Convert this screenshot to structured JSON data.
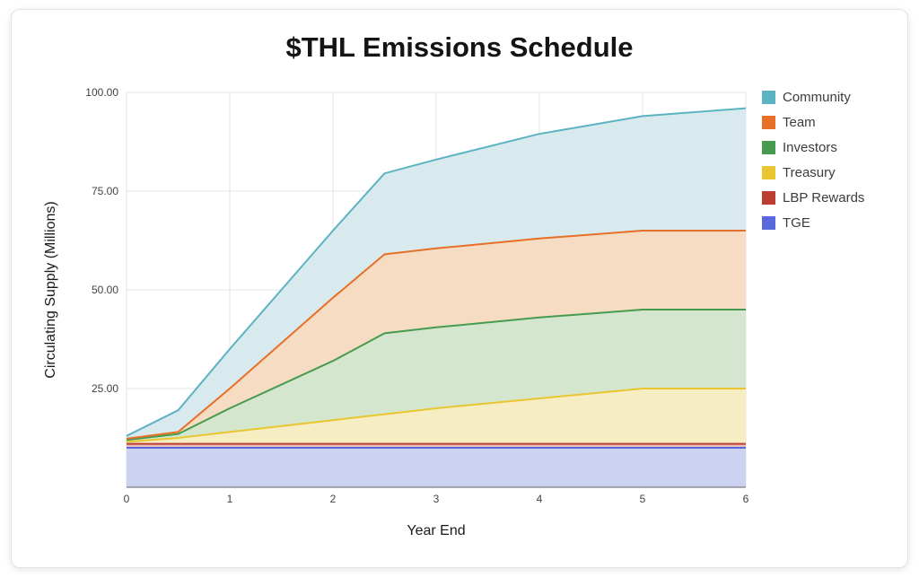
{
  "page": {
    "background": "#ffffff"
  },
  "chart_data": {
    "type": "area",
    "stacked": true,
    "title": "$THL Emissions Schedule",
    "xlabel": "Year End",
    "ylabel": "Circulating Supply (Millions)",
    "x": [
      0,
      0.5,
      1,
      2,
      2.5,
      3,
      4,
      5,
      6
    ],
    "xlim": [
      0,
      6
    ],
    "ylim": [
      0,
      100
    ],
    "xticks": {
      "values": [
        0,
        1,
        2,
        3,
        4,
        5,
        6
      ],
      "labels": [
        "0",
        "1",
        "2",
        "3",
        "4",
        "5",
        "6"
      ]
    },
    "yticks": {
      "values": [
        25,
        50,
        75,
        100
      ],
      "labels": [
        "25.00",
        "50.00",
        "75.00",
        "100.00"
      ]
    },
    "grid": true,
    "grid_color": "#e3e3e3",
    "axis_color": "#616161",
    "legend_position": "right",
    "series": [
      {
        "name": "Community",
        "color": "#5cb3c2",
        "fill": "#d8eaee",
        "values": [
          0.7,
          5.5,
          10,
          17,
          20.5,
          22.5,
          26.5,
          29,
          31
        ]
      },
      {
        "name": "Team",
        "color": "#e76f27",
        "fill": "#f7dcc4",
        "values": [
          0.3,
          0.5,
          5,
          16,
          20,
          20,
          20,
          20,
          20
        ]
      },
      {
        "name": "Investors",
        "color": "#469b4f",
        "fill": "#d4e7ce",
        "values": [
          0.5,
          1,
          6,
          15,
          20.5,
          20.5,
          20.5,
          20,
          20
        ]
      },
      {
        "name": "Treasury",
        "color": "#e9c62f",
        "fill": "#f6edc2",
        "values": [
          0.5,
          1.5,
          3,
          6,
          7.5,
          9,
          11.5,
          14,
          14
        ]
      },
      {
        "name": "LBP Rewards",
        "color": "#be3d32",
        "fill": "#e7c0ba",
        "values": [
          1,
          1,
          1,
          1,
          1,
          1,
          1,
          1,
          1
        ]
      },
      {
        "name": "TGE",
        "color": "#5a68dd",
        "fill": "#cbd3f1",
        "values": [
          10,
          10,
          10,
          10,
          10,
          10,
          10,
          10,
          10
        ]
      }
    ]
  }
}
